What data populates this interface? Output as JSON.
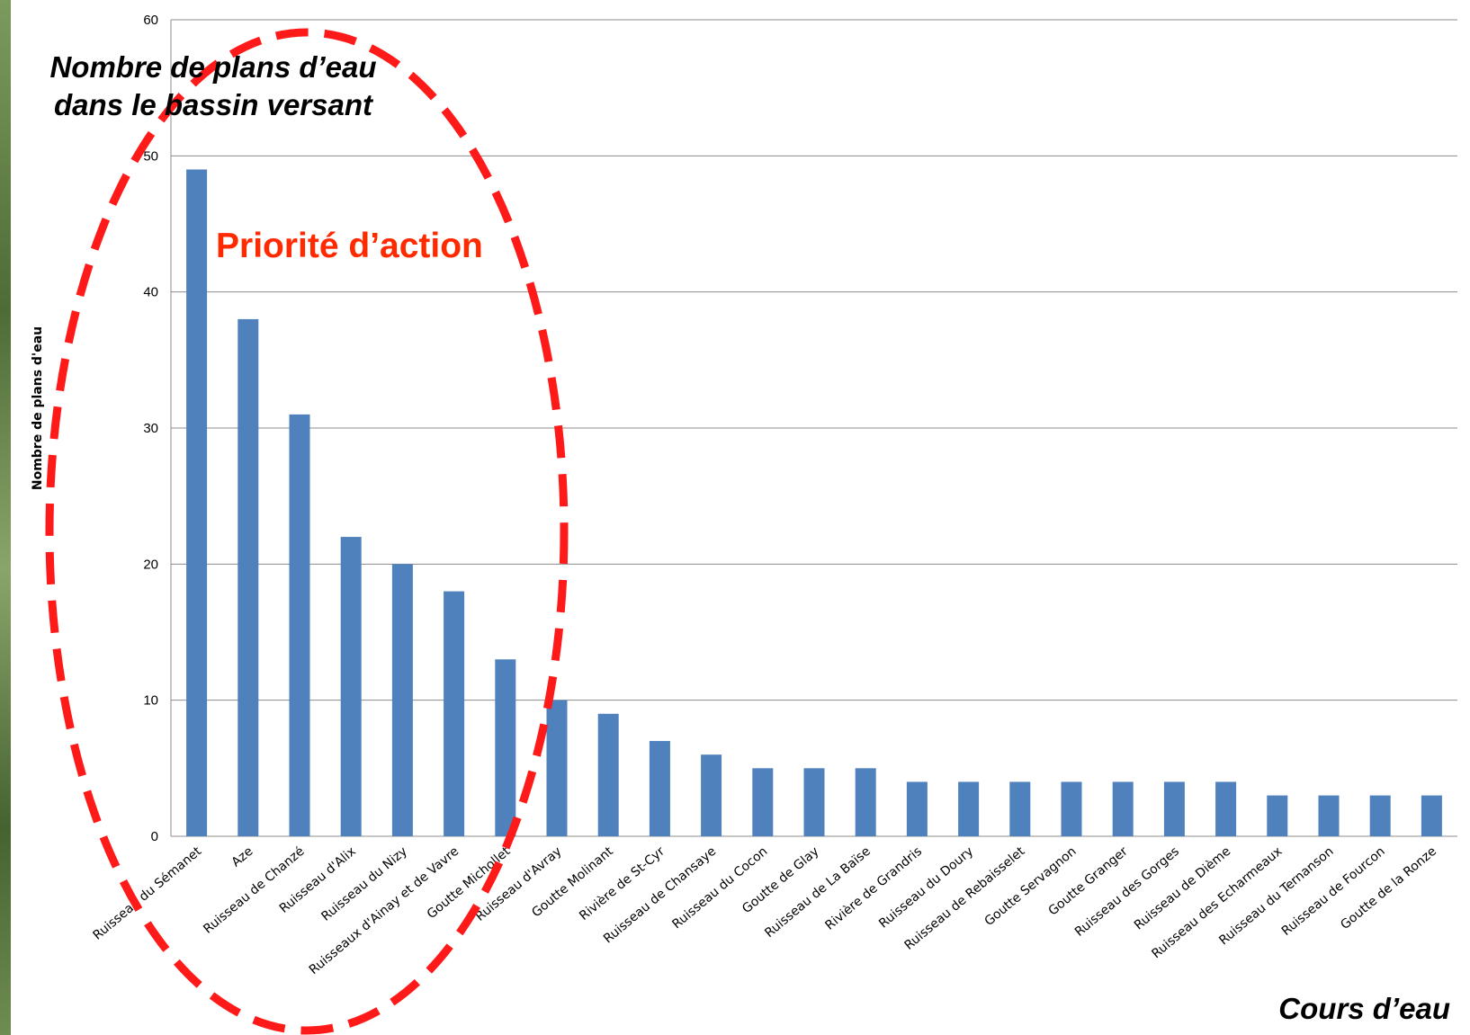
{
  "chart_data": {
    "type": "bar",
    "title": "",
    "ylabel": "Nombre de plans d'eau",
    "xlabel": "",
    "ylim": [
      0,
      60
    ],
    "yticks": [
      0,
      10,
      20,
      30,
      40,
      50,
      60
    ],
    "grid": true,
    "bar_color": "#4f81bd",
    "categories": [
      "Ruisseau du Sémanet",
      "Aze",
      "Ruisseau de Chanzé",
      "Ruisseau d'Alix",
      "Ruisseau du Nizy",
      "Ruisseaux d'Ainay et de Vavre",
      "Goutte Michollet",
      "Ruisseau d'Avray",
      "Goutte Molinant",
      "Rivière de St-Cyr",
      "Ruisseau de Chansaye",
      "Ruisseau du Cocon",
      "Goutte de Glay",
      "Ruisseau de La Baïse",
      "Rivière de Grandris",
      "Ruisseau du Doury",
      "Ruisseau de Rebaisselet",
      "Goutte Servagnon",
      "Goutte Granger",
      "Ruisseau des Gorges",
      "Ruisseau de Dième",
      "Ruisseau des Echarmeaux",
      "Ruisseau du Ternanson",
      "Ruisseau de Fourcon",
      "Goutte de la Ronze"
    ],
    "values": [
      49,
      38,
      31,
      22,
      20,
      18,
      13,
      10,
      9,
      7,
      6,
      5,
      5,
      5,
      4,
      4,
      4,
      4,
      4,
      4,
      4,
      3,
      3,
      3,
      3
    ]
  },
  "annotations": {
    "overlay_title_line1": "Nombre de plans d’eau",
    "overlay_title_line2": "dans le bassin versant",
    "priority_label": "Priorité d’action",
    "priority_color": "#ff1a1a",
    "x_title": "Cours d’eau"
  }
}
